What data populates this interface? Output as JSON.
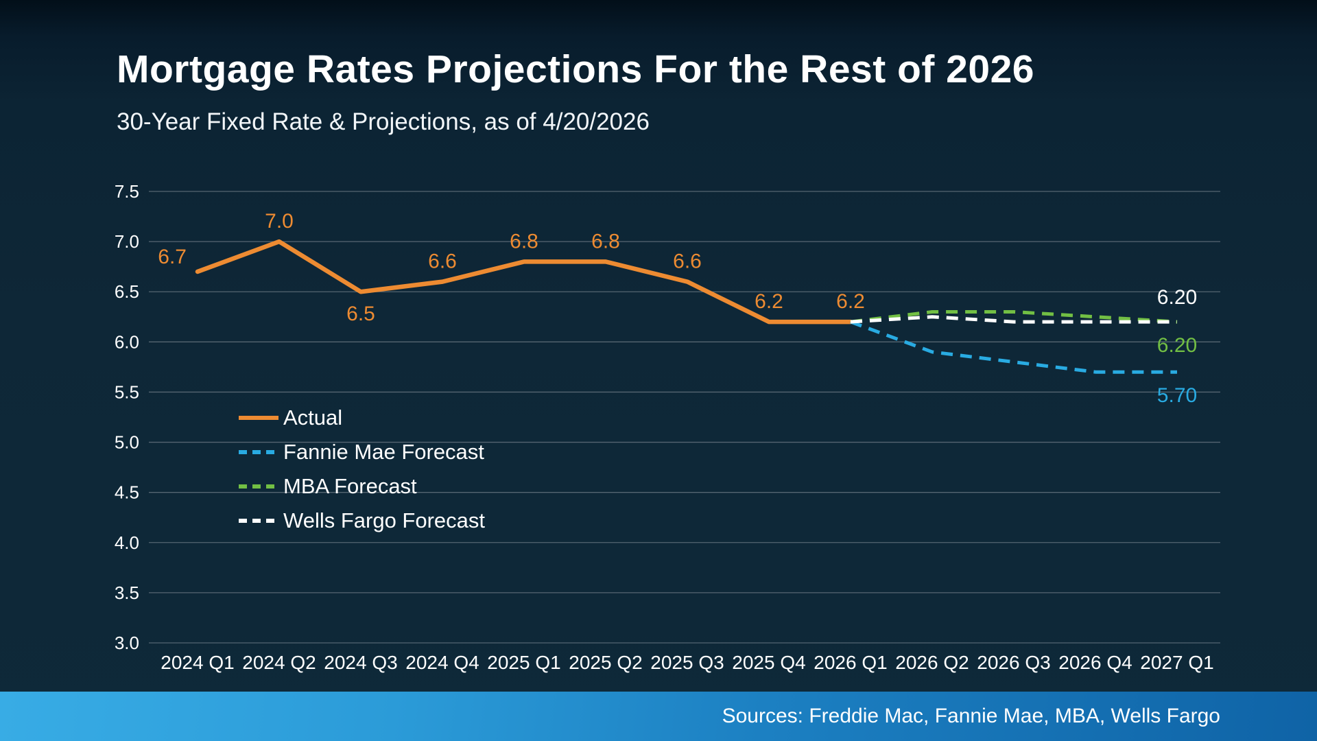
{
  "header": {
    "title": "Mortgage Rates Projections For the Rest of 2026",
    "subtitle": "30-Year Fixed Rate & Projections, as of 4/20/2026"
  },
  "footer": {
    "sources": "Sources: Freddie Mac, Fannie Mae, MBA, Wells Fargo"
  },
  "colors": {
    "background": "#0e2737",
    "text": "#ffffff",
    "grid": "#566672",
    "actual": "#ED8B32",
    "fannie_mae": "#29ABE2",
    "mba": "#72BF44",
    "wells_fargo": "#FFFFFF",
    "footer_gradient_start": "#38ACE5",
    "footer_gradient_end": "#0F63A6"
  },
  "chart_data": {
    "type": "line",
    "title": "Mortgage Rates Projections For the Rest of 2026",
    "subtitle": "30-Year Fixed Rate & Projections, as of 4/20/2026",
    "xlabel": "",
    "ylabel": "",
    "ylim": [
      3.0,
      7.5
    ],
    "yticks": [
      "7.5",
      "7.0",
      "6.5",
      "6.0",
      "5.5",
      "5.0",
      "4.5",
      "4.0",
      "3.5",
      "3.0"
    ],
    "grid": "horizontal",
    "legend_position": "inside-left",
    "categories": [
      "2024 Q1",
      "2024 Q2",
      "2024 Q3",
      "2024 Q4",
      "2025 Q1",
      "2025 Q2",
      "2025 Q3",
      "2025 Q4",
      "2026 Q1",
      "2026 Q2",
      "2026 Q3",
      "2026 Q4",
      "2027 Q1"
    ],
    "series": [
      {
        "id": "actual",
        "name": "Actual",
        "color": "#ED8B32",
        "dash": false,
        "values": [
          6.7,
          7.0,
          6.5,
          6.6,
          6.8,
          6.8,
          6.6,
          6.2,
          6.2,
          null,
          null,
          null,
          null
        ],
        "point_labels": [
          {
            "text": "6.7",
            "pos": "left-above"
          },
          {
            "text": "7.0",
            "pos": "above"
          },
          {
            "text": "6.5",
            "pos": "below"
          },
          {
            "text": "6.6",
            "pos": "above"
          },
          {
            "text": "6.8",
            "pos": "above"
          },
          {
            "text": "6.8",
            "pos": "above"
          },
          {
            "text": "6.6",
            "pos": "above"
          },
          {
            "text": "6.2",
            "pos": "above"
          },
          {
            "text": "6.2",
            "pos": "above"
          }
        ]
      },
      {
        "id": "fannie-mae",
        "name": "Fannie Mae Forecast",
        "color": "#29ABE2",
        "dash": true,
        "values": [
          null,
          null,
          null,
          null,
          null,
          null,
          null,
          null,
          6.2,
          5.9,
          5.8,
          5.7,
          5.7
        ],
        "end_label": {
          "text": "5.70",
          "pos": "below"
        }
      },
      {
        "id": "mba",
        "name": "MBA Forecast",
        "color": "#72BF44",
        "dash": true,
        "values": [
          null,
          null,
          null,
          null,
          null,
          null,
          null,
          null,
          6.2,
          6.3,
          6.3,
          6.25,
          6.2
        ],
        "end_label": {
          "text": "6.20",
          "pos": "below"
        }
      },
      {
        "id": "wells-fargo",
        "name": "Wells Fargo Forecast",
        "color": "#FFFFFF",
        "dash": true,
        "values": [
          null,
          null,
          null,
          null,
          null,
          null,
          null,
          null,
          6.2,
          6.25,
          6.2,
          6.2,
          6.2
        ],
        "end_label": {
          "text": "6.20",
          "pos": "above"
        }
      }
    ]
  }
}
